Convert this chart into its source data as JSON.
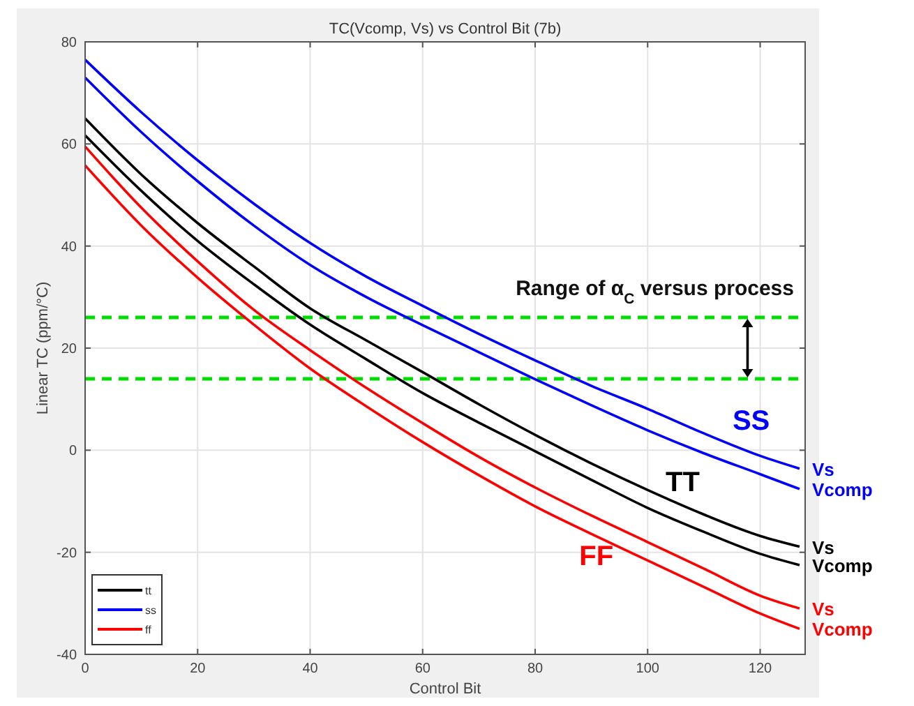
{
  "chart_data": {
    "type": "line",
    "title": "TC(Vcomp, Vs) vs Control Bit (7b)",
    "xlabel": "Control Bit",
    "ylabel": "Linear TC (ppm/°C)",
    "x": [
      0,
      10,
      20,
      30,
      40,
      50,
      60,
      70,
      80,
      90,
      100,
      110,
      120,
      127
    ],
    "series": [
      {
        "name": "tt",
        "color": "#000000",
        "values": [
          65,
          54,
          44.5,
          36,
          27.8,
          21.5,
          15.3,
          9,
          3.0,
          -2.6,
          -7.8,
          -12.6,
          -16.8,
          -18.9
        ]
      },
      {
        "color": "#000000",
        "values": [
          61.7,
          50.8,
          41,
          32.5,
          24.6,
          17.8,
          11.2,
          5.4,
          -0.2,
          -5.8,
          -11.3,
          -16,
          -20.3,
          -22.5
        ]
      },
      {
        "name": "ss",
        "color": "#0000ff",
        "values": [
          76.5,
          66.2,
          56.8,
          48.3,
          40.6,
          34,
          28.3,
          22.8,
          17.6,
          12.6,
          8.1,
          3.3,
          -1.1,
          -3.6
        ]
      },
      {
        "color": "#0000ff",
        "values": [
          73,
          62.3,
          52.7,
          44,
          36.3,
          30,
          24.5,
          19.2,
          13.9,
          8.8,
          3.9,
          -0.6,
          -4.7,
          -7.6
        ]
      },
      {
        "name": "ff",
        "color": "#ff0000",
        "values": [
          59.5,
          47.5,
          37,
          27.5,
          19.6,
          12.2,
          5.3,
          -1.3,
          -7.3,
          -12.8,
          -18,
          -23.2,
          -28.5,
          -31
        ]
      },
      {
        "color": "#ff0000",
        "values": [
          55.8,
          44,
          33.8,
          24.6,
          16,
          8.6,
          1.6,
          -4.9,
          -11,
          -16.4,
          -21.6,
          -26.8,
          -32,
          -35
        ]
      }
    ],
    "xlim": [
      0,
      128
    ],
    "ylim": [
      -40,
      80
    ],
    "xticks": [
      0,
      20,
      40,
      60,
      80,
      100,
      120
    ],
    "yticks": [
      -40,
      -20,
      0,
      20,
      40,
      60,
      80
    ],
    "grid": true,
    "legend": "bottom left",
    "line_style": "solid",
    "marker": "none",
    "ref_lines": [
      {
        "axis": "y",
        "value": 26,
        "color": "#00dd00",
        "line_style": "dashed"
      },
      {
        "axis": "y",
        "value": 14,
        "color": "#00dd00",
        "line_style": "dashed"
      }
    ],
    "annotations": [
      "Range of α$_{C}$ versus process",
      "TT",
      "SS",
      "FF",
      "Vs",
      "Vcomp",
      "Vs",
      "Vcomp",
      "Vs",
      "Vcomp"
    ]
  }
}
